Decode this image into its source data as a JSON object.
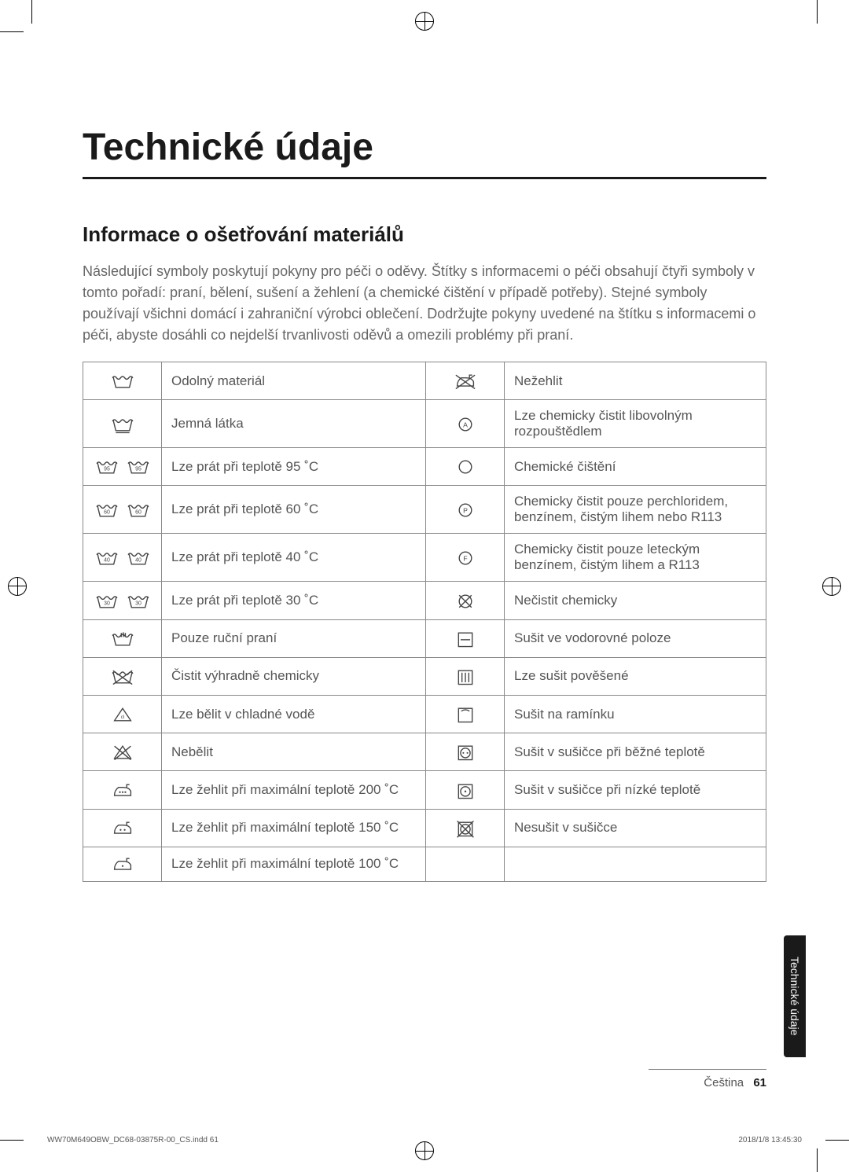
{
  "page": {
    "title": "Technické údaje",
    "section_title": "Informace o ošetřování materiálů",
    "intro": "Následující symboly poskytují pokyny pro péči o oděvy. Štítky s informacemi o péči obsahují čtyři symboly v tomto pořadí: praní, bělení, sušení a žehlení (a chemické čištění v případě potřeby). Stejné symboly používají všichni domácí i zahraniční výrobci oblečení. Dodržujte pokyny uvedené na štítku s informacemi o péči, abyste dosáhli co nejdelší trvanlivosti oděvů a omezili problémy při praní.",
    "side_tab": "Technické údaje",
    "footer_lang": "Čeština",
    "footer_page": "61",
    "print_file": "WW70M649OBW_DC68-03875R-00_CS.indd   61",
    "print_time": "2018/1/8   13:45:30"
  },
  "table": {
    "rows": [
      {
        "icon1": "wash-basin",
        "desc1": "Odolný materiál",
        "icon2": "iron-cross",
        "desc2": "Nežehlit"
      },
      {
        "icon1": "wash-basin-underline",
        "desc1": "Jemná látka",
        "icon2": "circle-a",
        "desc2": "Lze chemicky čistit libovolným rozpouštědlem"
      },
      {
        "icon1": "wash-95",
        "desc1": "Lze prát při teplotě 95 ˚C",
        "icon2": "circle",
        "desc2": "Chemické čištění"
      },
      {
        "icon1": "wash-60",
        "desc1": "Lze prát při teplotě 60 ˚C",
        "icon2": "circle-p",
        "desc2": "Chemicky čistit pouze perchloridem, benzínem, čistým lihem nebo R113"
      },
      {
        "icon1": "wash-40",
        "desc1": "Lze prát při teplotě 40 ˚C",
        "icon2": "circle-f",
        "desc2": "Chemicky čistit pouze leteckým benzínem, čistým lihem a R113"
      },
      {
        "icon1": "wash-30",
        "desc1": "Lze prát při teplotě 30 ˚C",
        "icon2": "circle-cross",
        "desc2": "Nečistit chemicky"
      },
      {
        "icon1": "hand-wash",
        "desc1": "Pouze ruční praní",
        "icon2": "dry-flat",
        "desc2": "Sušit ve vodorovné poloze"
      },
      {
        "icon1": "wash-cross",
        "desc1": "Čistit výhradně chemicky",
        "icon2": "dry-hang",
        "desc2": "Lze sušit pověšené"
      },
      {
        "icon1": "bleach-cl",
        "desc1": "Lze bělit v chladné vodě",
        "icon2": "dry-hanger",
        "desc2": "Sušit na ramínku"
      },
      {
        "icon1": "bleach-cross",
        "desc1": "Nebělit",
        "icon2": "tumble-normal",
        "desc2": "Sušit v sušičce při běžné teplotě"
      },
      {
        "icon1": "iron-3dot",
        "desc1": "Lze žehlit při maximální teplotě 200 ˚C",
        "icon2": "tumble-low",
        "desc2": "Sušit v sušičce při nízké teplotě"
      },
      {
        "icon1": "iron-2dot",
        "desc1": "Lze žehlit při maximální teplotě 150 ˚C",
        "icon2": "tumble-cross",
        "desc2": "Nesušit v sušičce"
      },
      {
        "icon1": "iron-1dot",
        "desc1": "Lze žehlit při maximální teplotě 100 ˚C",
        "icon2": "",
        "desc2": ""
      }
    ]
  },
  "style": {
    "text_color": "#555555",
    "heading_color": "#1a1a1a",
    "border_color": "#888888",
    "tab_bg": "#1a1a1a",
    "tab_fg": "#ffffff",
    "body_font_size": 18,
    "title_font_size": 48,
    "section_font_size": 26,
    "table_font_size": 17
  }
}
